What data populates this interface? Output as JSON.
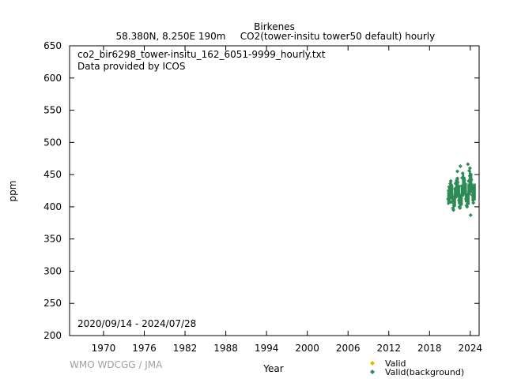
{
  "header": {
    "station": "Birkenes",
    "location": "58.380N, 8.250E 190m",
    "series_desc": "CO2(tower-insitu tower50 default) hourly"
  },
  "annotations": {
    "filename": "co2_bir6298_tower-insitu_162_6051-9999_hourly.txt",
    "provider": "Data provided by ICOS",
    "date_range": "2020/09/14 - 2024/07/28"
  },
  "credit": "WMO WDCGG / JMA",
  "colors": {
    "valid": "#e6b800",
    "background": "#2e8b57"
  },
  "chart_data": {
    "type": "scatter",
    "xlabel": "Year",
    "ylabel": "ppm",
    "xlim": [
      1965.0,
      2025.3
    ],
    "ylim": [
      200,
      650
    ],
    "x_ticks": [
      1970,
      1976,
      1982,
      1988,
      1994,
      2000,
      2006,
      2012,
      2018,
      2024
    ],
    "y_ticks": [
      200,
      250,
      300,
      350,
      400,
      450,
      500,
      550,
      600,
      650
    ],
    "grid": false,
    "legend_position": "bottom-right",
    "legend": [
      "Valid",
      "Valid(background)"
    ],
    "series": [
      {
        "name": "Valid(background)",
        "points": [
          [
            2020.72,
            412
          ],
          [
            2020.8,
            425
          ],
          [
            2020.88,
            431
          ],
          [
            2020.96,
            428
          ],
          [
            2021.04,
            436
          ],
          [
            2021.12,
            440
          ],
          [
            2021.2,
            434
          ],
          [
            2021.28,
            420
          ],
          [
            2021.36,
            408
          ],
          [
            2021.44,
            398
          ],
          [
            2021.52,
            395
          ],
          [
            2021.6,
            402
          ],
          [
            2021.68,
            415
          ],
          [
            2021.76,
            428
          ],
          [
            2021.84,
            436
          ],
          [
            2021.92,
            438
          ],
          [
            2022.0,
            441
          ],
          [
            2022.08,
            444
          ],
          [
            2022.16,
            438
          ],
          [
            2022.24,
            426
          ],
          [
            2022.32,
            410
          ],
          [
            2022.4,
            400
          ],
          [
            2022.48,
            398
          ],
          [
            2022.56,
            404
          ],
          [
            2022.64,
            418
          ],
          [
            2022.72,
            432
          ],
          [
            2022.8,
            445
          ],
          [
            2022.88,
            452
          ],
          [
            2022.96,
            446
          ],
          [
            2023.04,
            440
          ],
          [
            2023.12,
            442
          ],
          [
            2023.2,
            436
          ],
          [
            2023.28,
            424
          ],
          [
            2023.36,
            412
          ],
          [
            2023.44,
            402
          ],
          [
            2023.52,
            400
          ],
          [
            2023.6,
            406
          ],
          [
            2023.68,
            420
          ],
          [
            2023.76,
            440
          ],
          [
            2023.84,
            456
          ],
          [
            2023.92,
            448
          ],
          [
            2024.0,
            444
          ],
          [
            2024.08,
            450
          ],
          [
            2024.16,
            442
          ],
          [
            2024.24,
            430
          ],
          [
            2024.32,
            418
          ],
          [
            2024.4,
            410
          ],
          [
            2024.48,
            412
          ],
          [
            2024.56,
            428
          ],
          [
            2022.1,
            455
          ],
          [
            2022.55,
            463
          ],
          [
            2023.65,
            466
          ],
          [
            2023.95,
            460
          ],
          [
            2024.05,
            387
          ],
          [
            2021.0,
            407
          ],
          [
            2024.45,
            406
          ]
        ],
        "band": [
          [
            2020.72,
            403,
            423
          ],
          [
            2020.9,
            405,
            432
          ],
          [
            2021.1,
            412,
            441
          ],
          [
            2021.3,
            405,
            433
          ],
          [
            2021.5,
            395,
            418
          ],
          [
            2021.7,
            400,
            428
          ],
          [
            2021.9,
            413,
            440
          ],
          [
            2022.1,
            415,
            446
          ],
          [
            2022.3,
            404,
            434
          ],
          [
            2022.5,
            397,
            418
          ],
          [
            2022.7,
            402,
            432
          ],
          [
            2022.9,
            416,
            452
          ],
          [
            2023.1,
            418,
            446
          ],
          [
            2023.3,
            407,
            437
          ],
          [
            2023.5,
            398,
            420
          ],
          [
            2023.7,
            403,
            436
          ],
          [
            2023.9,
            418,
            456
          ],
          [
            2024.1,
            422,
            452
          ],
          [
            2024.3,
            410,
            436
          ],
          [
            2024.45,
            405,
            432
          ],
          [
            2024.58,
            410,
            436
          ]
        ]
      },
      {
        "name": "Valid",
        "points": []
      }
    ]
  }
}
